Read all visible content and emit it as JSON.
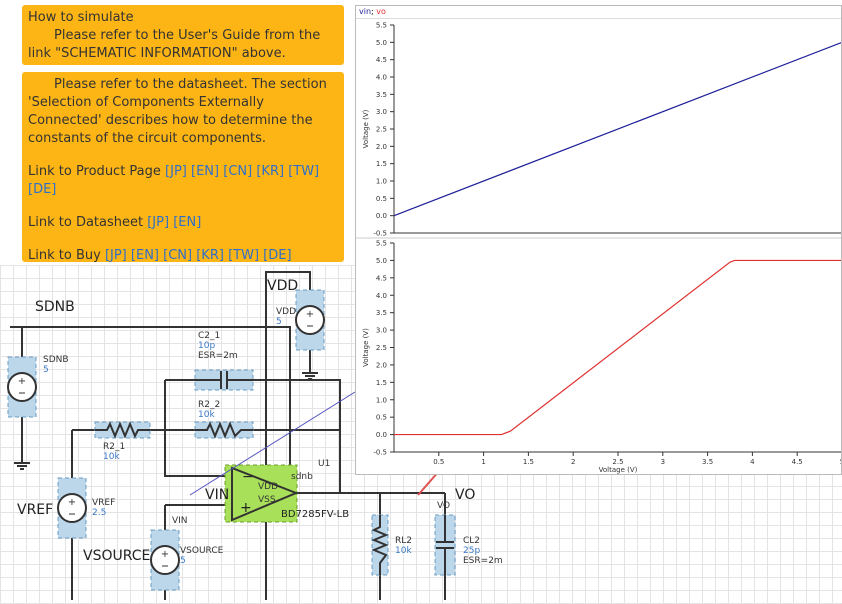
{
  "notes": {
    "simulate": {
      "title": "How to simulate",
      "body": "Please refer to the User's Guide from the link \"SCHEMATIC INFORMATION\" above."
    },
    "components": {
      "body": "Please refer to the datasheet. The section 'Selection of Components Externally Connected' describes how to determine the constants of the circuit components.",
      "product": {
        "label": "Link to Product Page",
        "links": [
          "[JP]",
          "[EN]",
          "[CN]",
          "[KR]",
          "[TW]",
          "[DE]"
        ]
      },
      "datasheet": {
        "label": "Link to Datasheet",
        "links": [
          "[JP]",
          "[EN]"
        ]
      },
      "buy": {
        "label": "Link to Buy",
        "links": [
          "[JP]",
          "[EN]",
          "[CN]",
          "[KR]",
          "[TW]",
          "[DE]"
        ]
      }
    }
  },
  "schematic": {
    "nets": {
      "vdd": "VDD",
      "sdnb": "SDNB",
      "vref": "VREF",
      "vsource": "VSOURCE",
      "vin": "VIN",
      "vo": "VO"
    },
    "parts": [
      {
        "name": "VDD",
        "value": [
          "5"
        ]
      },
      {
        "name": "SDNB",
        "value": [
          "5"
        ]
      },
      {
        "name": "C2_1",
        "value": [
          "10p",
          "ESR=2m"
        ]
      },
      {
        "name": "R2_2",
        "value": [
          "10k"
        ]
      },
      {
        "name": "R2_1",
        "value": [
          "10k"
        ]
      },
      {
        "name": "VREF",
        "value": [
          "2.5"
        ]
      },
      {
        "name": "VSOURCE",
        "value": [
          "5"
        ]
      },
      {
        "name": "RL2",
        "value": [
          "10k"
        ]
      },
      {
        "name": "CL2",
        "value": [
          "25p",
          "ESR=2m"
        ]
      }
    ],
    "u1": {
      "ref": "U1",
      "part": "BD7285FV-LB",
      "pins": [
        "VDD",
        "VSS",
        "sdnb"
      ],
      "minus": "−",
      "plus": "+"
    },
    "vin_pin": "VIN",
    "vo_pin": "VO"
  },
  "chart_panel": {
    "separator": ";"
  },
  "chart_data": [
    {
      "type": "line",
      "ylabel": "Voltage (V)",
      "xlim": [
        0,
        5
      ],
      "ylim": [
        -0.5,
        5.5
      ],
      "grid": false,
      "yticks": [
        -0.5,
        {
          "value": 0,
          "label": "0.0"
        },
        0.5,
        {
          "value": 1,
          "label": "1.0"
        },
        1.5,
        {
          "value": 2,
          "label": "2.0"
        },
        2.5,
        {
          "value": 3,
          "label": "3.0"
        },
        3.5,
        {
          "value": 4,
          "label": "4.0"
        },
        4.5,
        {
          "value": 5,
          "label": "5.0"
        },
        5.5
      ],
      "series": [
        {
          "name": "vin",
          "color": "#1f1f9a",
          "x": [
            0,
            5
          ],
          "values": [
            0,
            5
          ]
        }
      ]
    },
    {
      "type": "line",
      "xlabel": "Voltage (V)",
      "ylabel": "Voltage (V)",
      "xlim": [
        0,
        5
      ],
      "ylim": [
        -0.5,
        5.5
      ],
      "grid": false,
      "xticks": [
        0.5,
        1,
        1.5,
        2,
        2.5,
        3,
        3.5,
        4,
        4.5,
        5
      ],
      "yticks": [
        -0.5,
        {
          "value": 0,
          "label": "0.0"
        },
        0.5,
        {
          "value": 1,
          "label": "1.0"
        },
        1.5,
        {
          "value": 2,
          "label": "2.0"
        },
        2.5,
        {
          "value": 3,
          "label": "3.0"
        },
        3.5,
        {
          "value": 4,
          "label": "4.0"
        },
        4.5,
        {
          "value": 5,
          "label": "5.0"
        },
        5.5
      ],
      "series": [
        {
          "name": "vo",
          "color": "#e03030",
          "x": [
            0,
            1.2,
            1.3,
            3.75,
            3.8,
            5
          ],
          "values": [
            0,
            0,
            0.1,
            4.95,
            5,
            5
          ]
        }
      ]
    }
  ]
}
